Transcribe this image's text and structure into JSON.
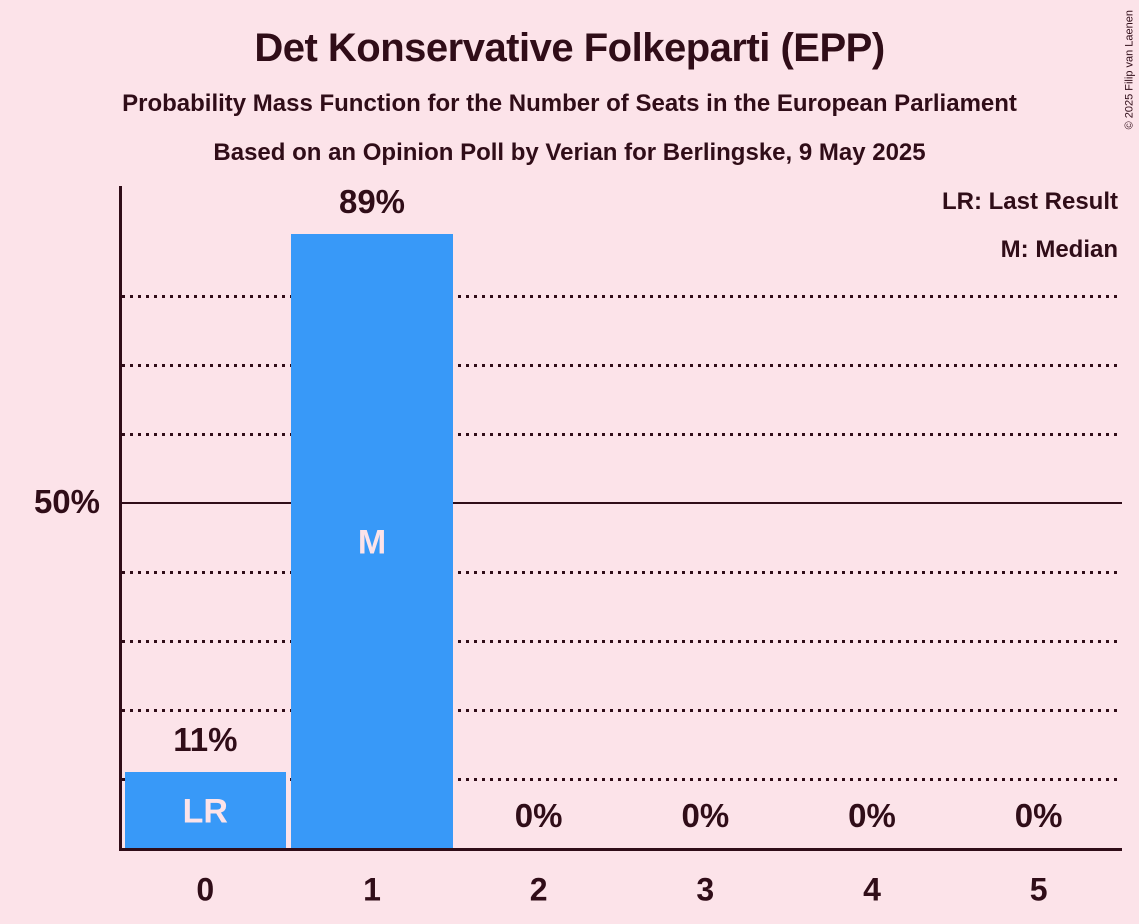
{
  "chart_data": {
    "type": "bar",
    "title": "Det Konservative Folkeparti (EPP)",
    "subtitle": "Probability Mass Function for the Number of Seats in the European Parliament",
    "subtitle2": "Based on an Opinion Poll by Verian for Berlingske, 9 May 2025",
    "xlabel": "",
    "ylabel": "",
    "categories": [
      "0",
      "1",
      "2",
      "3",
      "4",
      "5"
    ],
    "values": [
      11,
      89,
      0,
      0,
      0,
      0
    ],
    "bar_value_labels": [
      "11%",
      "89%",
      "0%",
      "0%",
      "0%",
      "0%"
    ],
    "bar_inner_labels": [
      "LR",
      "M",
      "",
      "",
      "",
      ""
    ],
    "y_tick_label": "50%",
    "solid_line_at": 50,
    "dotted_lines_at": [
      10,
      20,
      30,
      40,
      60,
      70,
      80
    ],
    "ylim": [
      0,
      96
    ],
    "grid": "dotted horizontal lines every 10%, solid line at 50%",
    "legend_position": "top-right",
    "legend": [
      "LR: Last Result",
      "M: Median"
    ],
    "colors": {
      "background": "#fce3e9",
      "bar": "#3899f8",
      "text": "#300d18",
      "inner_label": "#fce3e9"
    },
    "copyright": "© 2025 Filip van Laenen"
  }
}
